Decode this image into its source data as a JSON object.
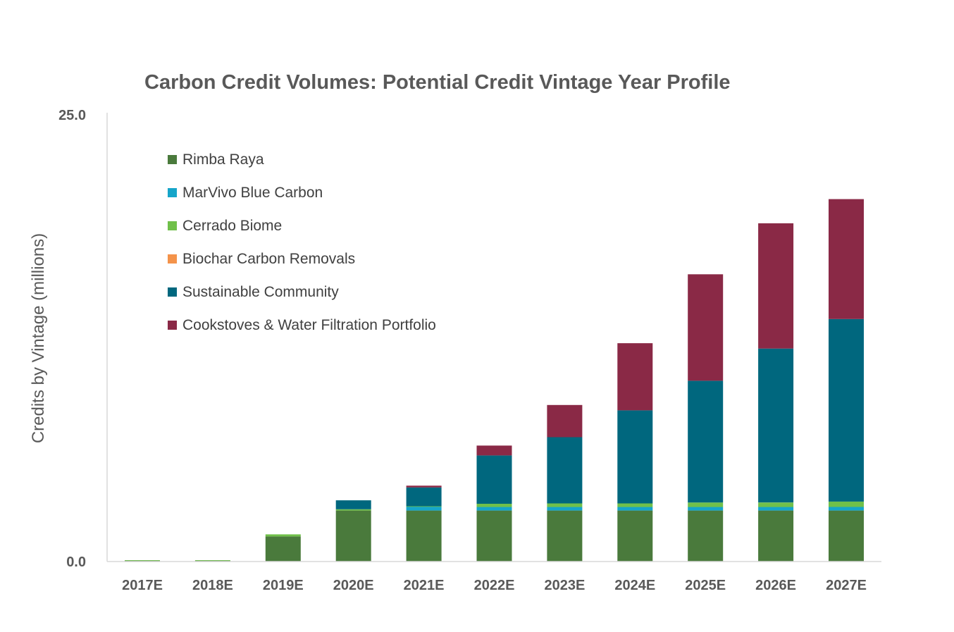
{
  "chart_data": {
    "type": "bar",
    "stacked": true,
    "title": "Carbon Credit Volumes: Potential Credit Vintage Year Profile",
    "xlabel": "",
    "ylabel": "Credits by Vintage (millions)",
    "ylim": [
      0,
      25
    ],
    "yticks": [
      "0.0",
      "25.0"
    ],
    "grid": false,
    "legend_position": "top-left",
    "categories": [
      "2017E",
      "2018E",
      "2019E",
      "2020E",
      "2021E",
      "2022E",
      "2023E",
      "2024E",
      "2025E",
      "2026E",
      "2027E"
    ],
    "series": [
      {
        "name": "Rimba Raya",
        "color": "#4a7a3c",
        "values": [
          0.05,
          0.05,
          1.4,
          2.85,
          2.85,
          2.85,
          2.85,
          2.85,
          2.85,
          2.85,
          2.85
        ]
      },
      {
        "name": "MarVivo Blue Carbon",
        "color": "#16a5c9",
        "values": [
          0,
          0,
          0,
          0,
          0.22,
          0.2,
          0.2,
          0.2,
          0.2,
          0.2,
          0.2
        ]
      },
      {
        "name": "Cerrado Biome",
        "color": "#70c04a",
        "values": [
          0.03,
          0.03,
          0.12,
          0.07,
          0.02,
          0.18,
          0.2,
          0.2,
          0.25,
          0.25,
          0.3
        ]
      },
      {
        "name": "Biochar Carbon Removals",
        "color": "#f4934a",
        "values": [
          0,
          0,
          0,
          0,
          0,
          0,
          0,
          0,
          0,
          0,
          0
        ]
      },
      {
        "name": "Sustainable Community",
        "color": "#00677e",
        "values": [
          0,
          0,
          0,
          0.5,
          1.05,
          2.7,
          3.7,
          5.2,
          6.8,
          8.6,
          10.2
        ]
      },
      {
        "name": "Cookstoves & Water Filtration Portfolio",
        "color": "#8a2946",
        "values": [
          0,
          0,
          0,
          0,
          0.1,
          0.55,
          1.8,
          3.75,
          5.95,
          7.0,
          6.7
        ]
      }
    ]
  }
}
